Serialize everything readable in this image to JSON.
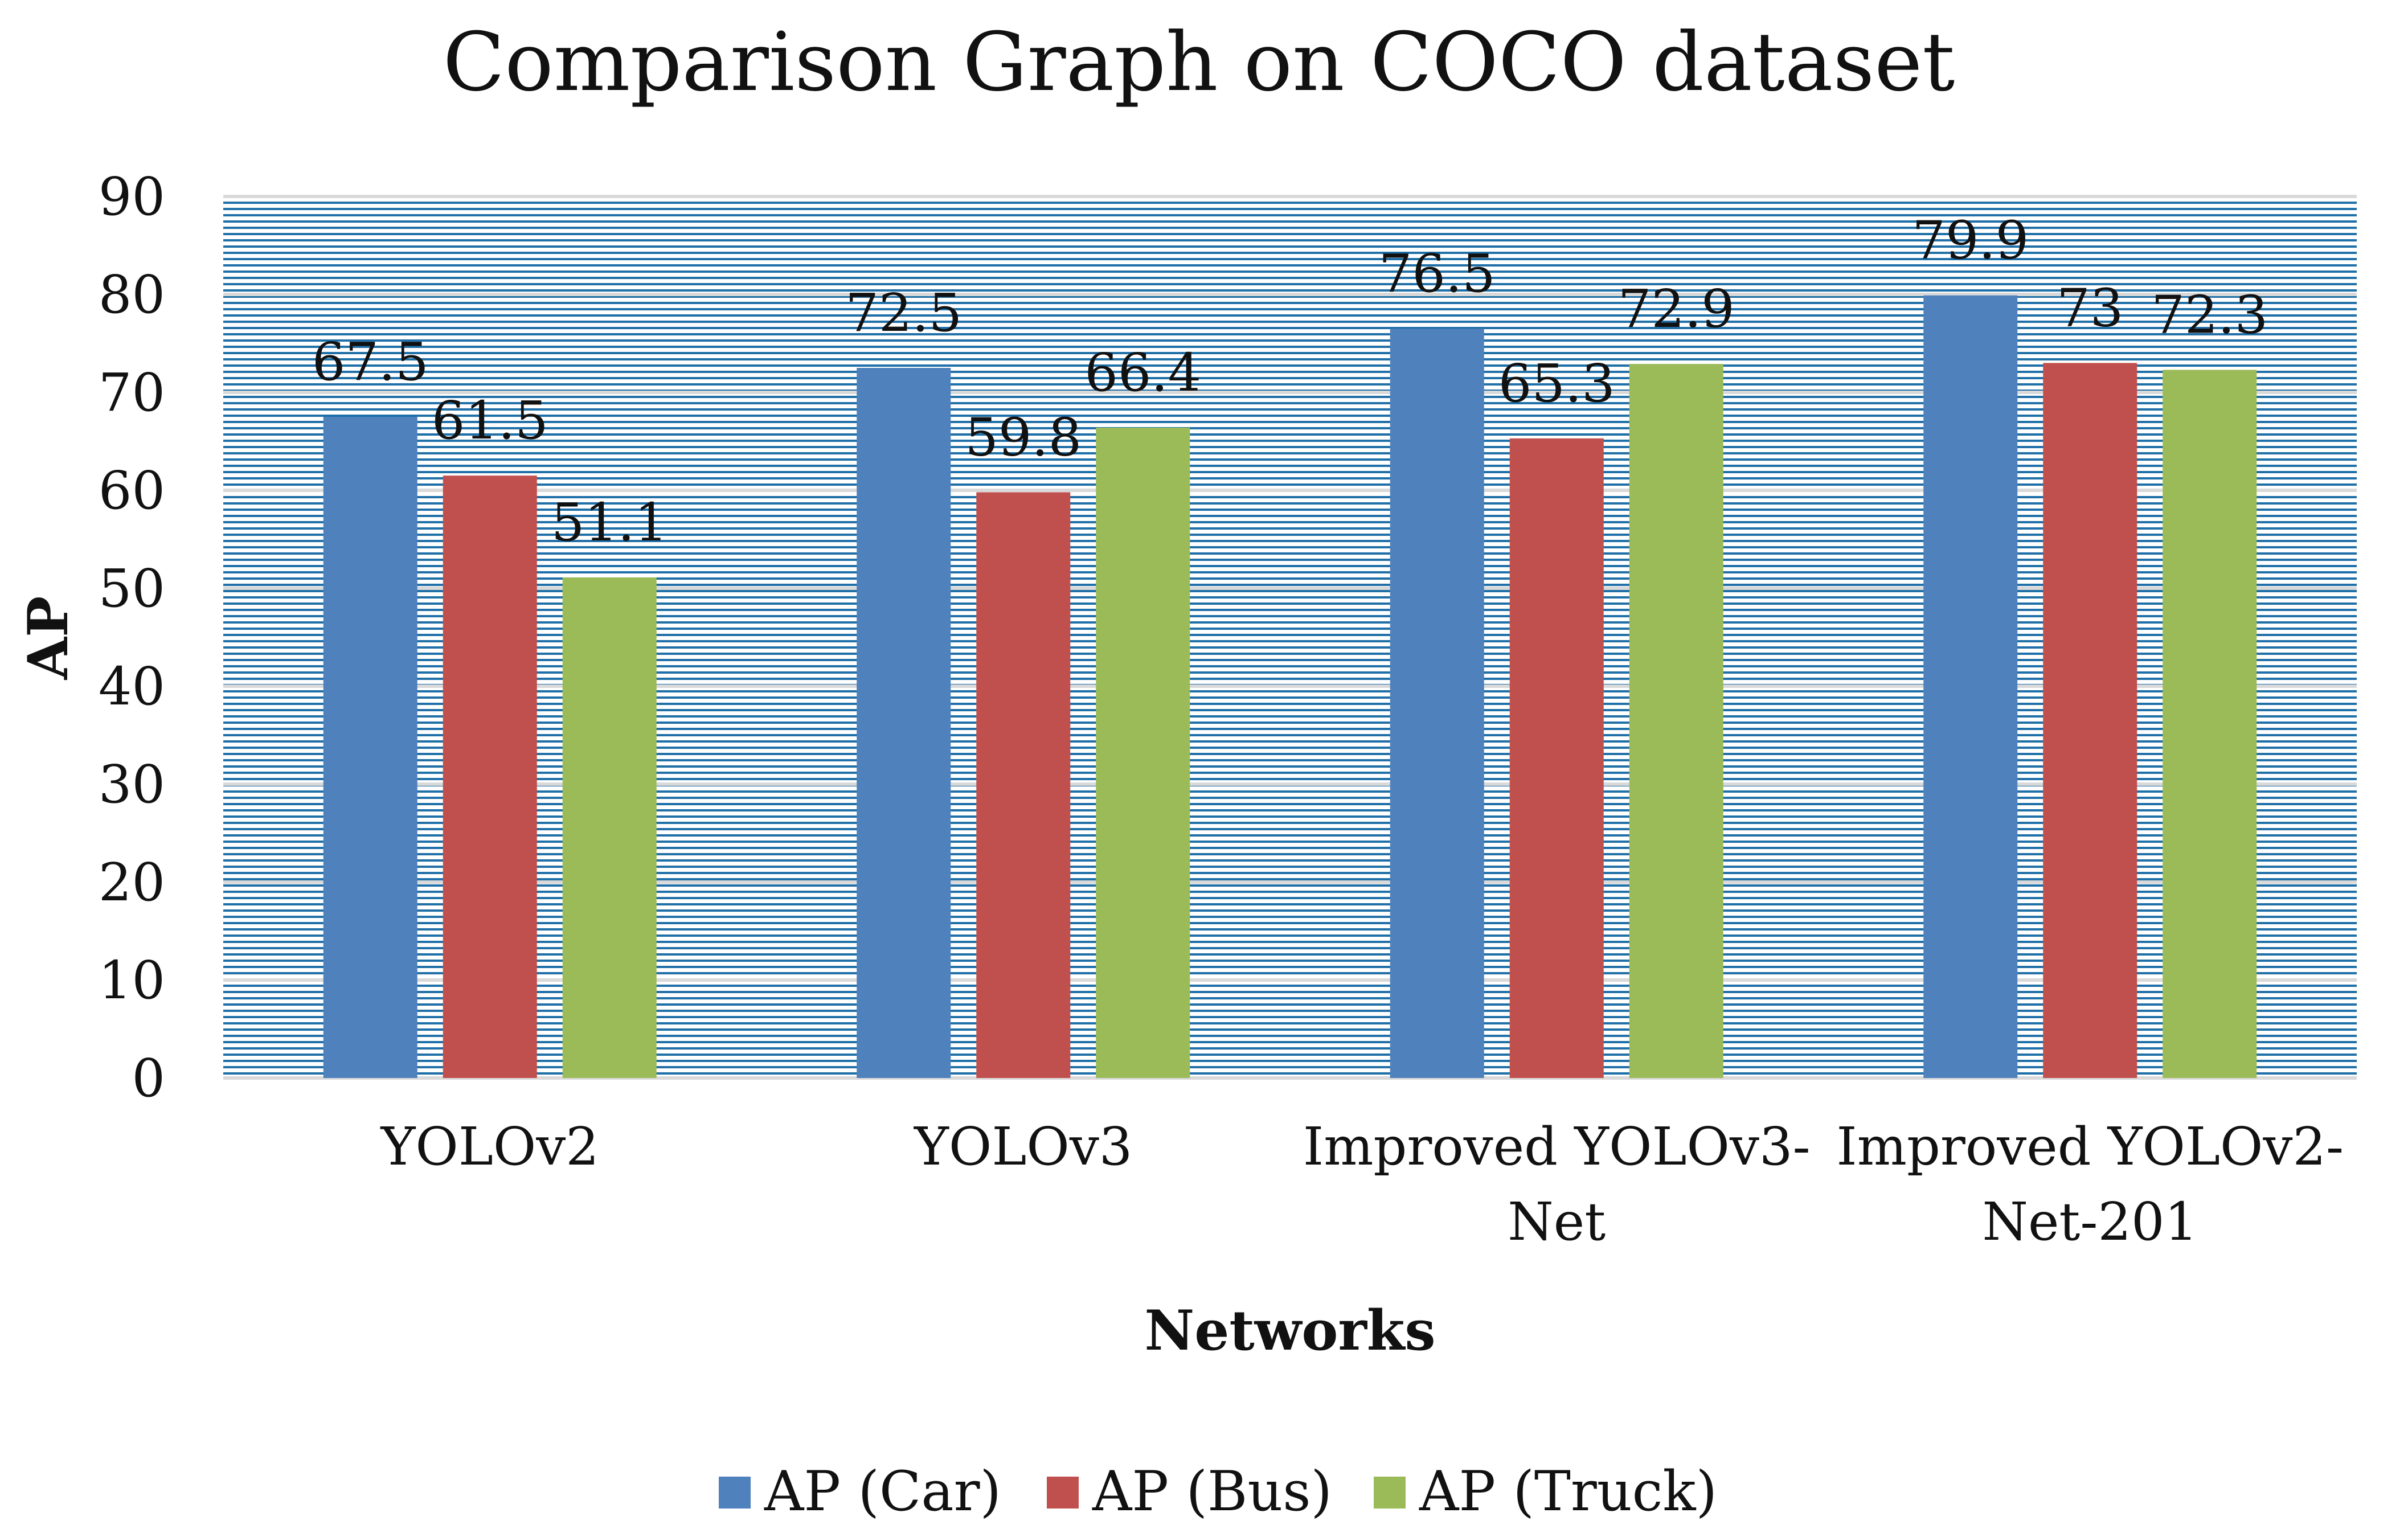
{
  "chart_data": {
    "type": "bar",
    "title": "Comparison Graph on COCO  dataset",
    "xlabel": "Networks",
    "ylabel": "AP",
    "ylim": [
      0,
      90
    ],
    "yticks": [
      0,
      10,
      20,
      30,
      40,
      50,
      60,
      70,
      80,
      90
    ],
    "grid": true,
    "legend_position": "bottom",
    "categories": [
      [
        "YOLOv2"
      ],
      [
        "YOLOv3"
      ],
      [
        "Improved YOLOv3-",
        "Net"
      ],
      [
        "Improved YOLOv2-",
        "Net-201"
      ]
    ],
    "series": [
      {
        "name": "AP (Car)",
        "color": "#4F81BD",
        "values": [
          67.5,
          72.5,
          76.5,
          79.9
        ]
      },
      {
        "name": "AP (Bus)",
        "color": "#C0504D",
        "values": [
          61.5,
          59.8,
          65.3,
          73
        ]
      },
      {
        "name": "AP (Truck)",
        "color": "#9BBB59",
        "values": [
          51.1,
          66.4,
          72.9,
          72.3
        ]
      }
    ],
    "plot_background_color": "#1F6FA8"
  }
}
